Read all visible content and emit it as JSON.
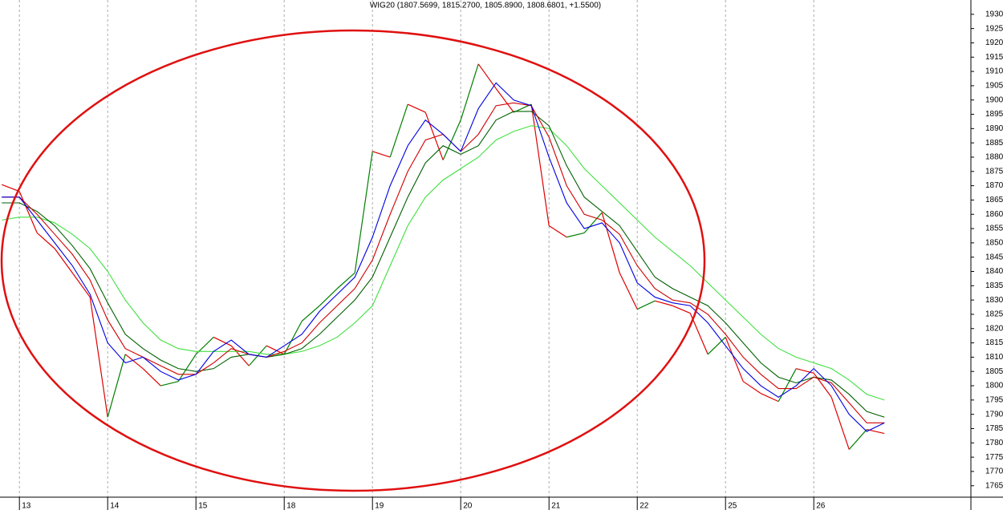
{
  "chart_data": {
    "type": "line",
    "title": "WIG20 (1807.5699, 1815.2700, 1805.8900, 1808.6801, +1.5500)",
    "x": [
      -0.2,
      0,
      0.2,
      0.4,
      0.6,
      0.8,
      1,
      1.2,
      1.4,
      1.6,
      1.8,
      2,
      2.2,
      2.4,
      2.6,
      2.8,
      3,
      3.2,
      3.4,
      3.6,
      3.8,
      4,
      4.2,
      4.4,
      4.6,
      4.8,
      5,
      5.2,
      5.4,
      5.6,
      5.8,
      6,
      6.2,
      6.4,
      6.6,
      6.8,
      7,
      7.2,
      7.4,
      7.6,
      7.8,
      8,
      8.2,
      8.4,
      8.6,
      8.8,
      9,
      9.2,
      9.4,
      9.6,
      9.8
    ],
    "xlim": [
      -0.22,
      10.78
    ],
    "xticks": [
      {
        "value": 0,
        "label": "13"
      },
      {
        "value": 1,
        "label": "14"
      },
      {
        "value": 2,
        "label": "15"
      },
      {
        "value": 3,
        "label": "18"
      },
      {
        "value": 4,
        "label": "19"
      },
      {
        "value": 5,
        "label": "20"
      },
      {
        "value": 6,
        "label": "21"
      },
      {
        "value": 7,
        "label": "22"
      },
      {
        "value": 8,
        "label": "25"
      },
      {
        "value": 9,
        "label": "26"
      }
    ],
    "ylim": [
      1761,
      1935
    ],
    "yticks": [
      1765,
      1770,
      1775,
      1780,
      1785,
      1790,
      1795,
      1800,
      1805,
      1810,
      1815,
      1820,
      1825,
      1830,
      1835,
      1840,
      1845,
      1850,
      1855,
      1860,
      1865,
      1870,
      1875,
      1880,
      1885,
      1890,
      1895,
      1900,
      1905,
      1910,
      1915,
      1920,
      1925,
      1930
    ],
    "grid": true,
    "series": [
      {
        "color": "#008000",
        "down_color": "#e00000",
        "values": [
          1870.4,
          1868,
          1853.5,
          1848,
          1839.5,
          1831,
          1789,
          1811,
          1806,
          1800,
          1801.5,
          1811,
          1817,
          1814,
          1807,
          1814,
          1811,
          1822.6,
          1828,
          1834,
          1839.5,
          1882,
          1880,
          1898.5,
          1895.7,
          1879,
          1893,
          1912.6,
          1904,
          1895.7,
          1898.5,
          1856,
          1852,
          1853.5,
          1860.6,
          1839.5,
          1826.8,
          1829.7,
          1828,
          1825.4,
          1811,
          1817,
          1801.5,
          1797.3,
          1794.5,
          1806,
          1804.4,
          1796,
          1777.7,
          1784.7,
          1783.3
        ]
      },
      {
        "color": "#40e040",
        "values": [
          1858,
          1859,
          1859,
          1857,
          1853,
          1848,
          1840,
          1830,
          1822,
          1816,
          1813,
          1812,
          1812,
          1812,
          1812,
          1811,
          1811,
          1812,
          1814,
          1817,
          1822,
          1828,
          1842,
          1856,
          1866,
          1872,
          1876,
          1880,
          1886,
          1889,
          1891,
          1890,
          1884,
          1876,
          1870,
          1864,
          1858,
          1852,
          1847,
          1842,
          1836,
          1830,
          1824,
          1818,
          1813,
          1810,
          1808,
          1806,
          1802,
          1797,
          1795
        ]
      },
      {
        "color": "#006000",
        "values": [
          1864,
          1864,
          1861,
          1856,
          1849,
          1841,
          1829,
          1818,
          1813,
          1809,
          1806,
          1805,
          1806,
          1810,
          1811,
          1810,
          1811,
          1813,
          1818,
          1824,
          1830,
          1838,
          1852,
          1866,
          1878,
          1884,
          1881,
          1884,
          1893,
          1896,
          1896,
          1891,
          1877,
          1866,
          1861,
          1856,
          1847,
          1838,
          1834,
          1831,
          1828,
          1822,
          1815,
          1808,
          1803,
          1801,
          1803,
          1802,
          1797,
          1791,
          1789
        ]
      },
      {
        "color": "#d00000",
        "values": [
          1866,
          1866,
          1860,
          1853,
          1846,
          1837,
          1823,
          1813,
          1810,
          1807,
          1804,
          1804,
          1808,
          1813,
          1811,
          1810,
          1812,
          1815,
          1822,
          1828,
          1834,
          1844,
          1860,
          1875,
          1886,
          1888,
          1882,
          1888,
          1898,
          1899,
          1898,
          1887,
          1870,
          1860,
          1858,
          1853,
          1842,
          1834,
          1830,
          1829,
          1825,
          1818,
          1810,
          1804,
          1799,
          1799,
          1803,
          1801,
          1794,
          1787,
          1787
        ]
      },
      {
        "color": "#0000e0",
        "values": [
          1866,
          1866,
          1858,
          1850,
          1842,
          1832,
          1815,
          1808,
          1810,
          1805,
          1802,
          1804,
          1812,
          1816,
          1811,
          1810,
          1814,
          1818,
          1826,
          1832,
          1838,
          1852,
          1870,
          1884,
          1893,
          1888,
          1882,
          1897,
          1906,
          1900,
          1898,
          1880,
          1864,
          1855,
          1857,
          1850,
          1836,
          1831,
          1829,
          1828,
          1822,
          1814,
          1806,
          1800,
          1796,
          1800,
          1806,
          1800,
          1790,
          1784,
          1787
        ]
      }
    ]
  }
}
